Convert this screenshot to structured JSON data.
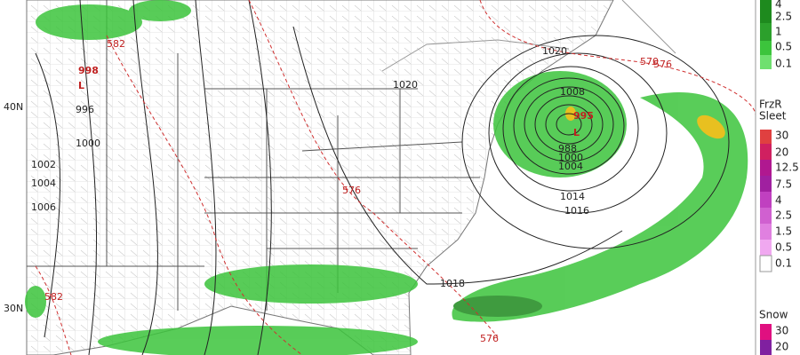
{
  "map": {
    "labels": [
      "40N",
      "30N",
      "998",
      "L",
      "995",
      "L",
      "996",
      "1000",
      "1002",
      "1004",
      "1006",
      "1020",
      "1020",
      "1008",
      "1014",
      "1016",
      "1018",
      "576",
      "576",
      "576",
      "582",
      "582",
      "570",
      "988",
      "1000",
      "1004"
    ]
  },
  "legends": [
    {
      "title": null,
      "labels": [
        "4",
        "2.5",
        "1",
        "0.5",
        "0.1"
      ]
    },
    {
      "title": "FrzR",
      "subtitle": "Sleet",
      "labels": [
        "30",
        "20",
        "12.5",
        "7.5",
        "4",
        "2.5",
        "1.5",
        "0.5",
        "0.1"
      ]
    },
    {
      "title": "Snow",
      "labels": [
        "30",
        "20"
      ]
    }
  ]
}
